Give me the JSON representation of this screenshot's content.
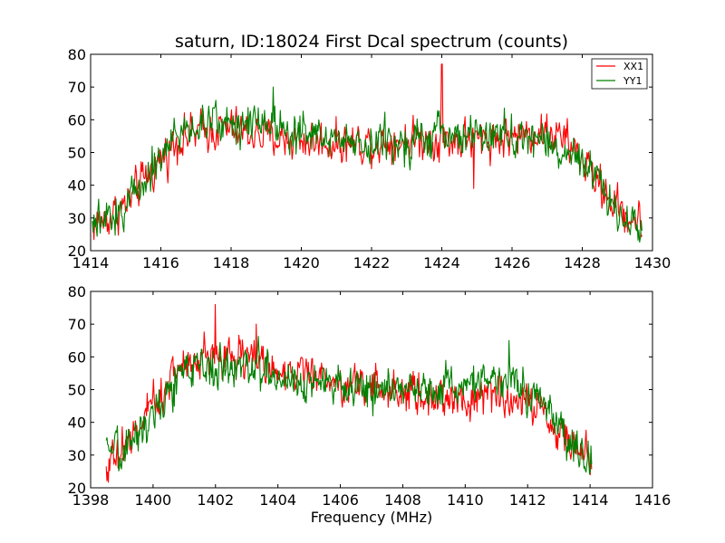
{
  "chart_data": [
    {
      "type": "line",
      "title": "saturn, ID:18024 First Dcal spectrum (counts)",
      "xlabel": "",
      "ylabel": "",
      "xlim": [
        1414,
        1430
      ],
      "ylim": [
        20,
        80
      ],
      "xticks": [
        "1414",
        "1416",
        "1418",
        "1420",
        "1422",
        "1424",
        "1426",
        "1428",
        "1430"
      ],
      "yticks": [
        "20",
        "30",
        "40",
        "50",
        "60",
        "70",
        "80"
      ],
      "legend": {
        "position": "top-right",
        "entries": [
          "XX1",
          "YY1"
        ]
      },
      "series": [
        {
          "name": "XX1",
          "color": "#ff0000",
          "x_range": [
            1414.05,
            1429.7
          ],
          "envelope": [
            [
              1414.05,
              28
            ],
            [
              1414.5,
              30
            ],
            [
              1415.0,
              34
            ],
            [
              1415.5,
              41
            ],
            [
              1416.0,
              48
            ],
            [
              1416.5,
              54
            ],
            [
              1417.0,
              56
            ],
            [
              1417.5,
              57
            ],
            [
              1418.0,
              57
            ],
            [
              1418.5,
              56
            ],
            [
              1419.0,
              55
            ],
            [
              1419.5,
              54
            ],
            [
              1420.0,
              54
            ],
            [
              1421.0,
              53
            ],
            [
              1422.0,
              53
            ],
            [
              1423.0,
              54
            ],
            [
              1424.0,
              54
            ],
            [
              1425.0,
              54
            ],
            [
              1426.0,
              55
            ],
            [
              1426.5,
              56
            ],
            [
              1427.0,
              56
            ],
            [
              1427.5,
              54
            ],
            [
              1428.0,
              48
            ],
            [
              1428.5,
              40
            ],
            [
              1429.0,
              33
            ],
            [
              1429.7,
              28
            ]
          ],
          "spikes": [
            [
              1424.0,
              77
            ],
            [
              1424.9,
              39
            ]
          ],
          "noise": 4.5
        },
        {
          "name": "YY1",
          "color": "#008000",
          "x_range": [
            1414.05,
            1429.7
          ],
          "envelope": [
            [
              1414.05,
              27
            ],
            [
              1414.5,
              29
            ],
            [
              1415.0,
              34
            ],
            [
              1415.5,
              42
            ],
            [
              1416.0,
              49
            ],
            [
              1416.5,
              56
            ],
            [
              1417.0,
              58
            ],
            [
              1417.5,
              59
            ],
            [
              1418.0,
              59
            ],
            [
              1418.5,
              60
            ],
            [
              1419.0,
              60
            ],
            [
              1419.5,
              58
            ],
            [
              1420.0,
              56
            ],
            [
              1421.0,
              54
            ],
            [
              1422.0,
              53
            ],
            [
              1423.0,
              54
            ],
            [
              1424.0,
              55
            ],
            [
              1425.0,
              55
            ],
            [
              1426.0,
              55
            ],
            [
              1426.5,
              55
            ],
            [
              1427.0,
              53
            ],
            [
              1427.5,
              50
            ],
            [
              1428.0,
              46
            ],
            [
              1428.5,
              40
            ],
            [
              1429.0,
              32
            ],
            [
              1429.7,
              27
            ]
          ],
          "spikes": [
            [
              1419.2,
              70
            ]
          ],
          "noise": 4.5
        }
      ]
    },
    {
      "type": "line",
      "title": "",
      "xlabel": "Frequency (MHz)",
      "ylabel": "",
      "xlim": [
        1398,
        1416
      ],
      "ylim": [
        20,
        80
      ],
      "xticks": [
        "1398",
        "1400",
        "1402",
        "1404",
        "1406",
        "1408",
        "1410",
        "1412",
        "1414",
        "1416"
      ],
      "yticks": [
        "20",
        "30",
        "40",
        "50",
        "60",
        "70",
        "80"
      ],
      "series": [
        {
          "color": "#ff0000",
          "x_range": [
            1398.5,
            1414.05
          ],
          "envelope": [
            [
              1398.5,
              28
            ],
            [
              1399.0,
              31
            ],
            [
              1399.5,
              38
            ],
            [
              1400.0,
              45
            ],
            [
              1400.5,
              53
            ],
            [
              1401.0,
              58
            ],
            [
              1401.5,
              60
            ],
            [
              1402.0,
              61
            ],
            [
              1402.5,
              61
            ],
            [
              1403.0,
              60
            ],
            [
              1403.5,
              59
            ],
            [
              1404.0,
              56
            ],
            [
              1405.0,
              54
            ],
            [
              1406.0,
              52
            ],
            [
              1407.0,
              51
            ],
            [
              1408.0,
              49
            ],
            [
              1409.0,
              47
            ],
            [
              1410.0,
              48
            ],
            [
              1411.0,
              48
            ],
            [
              1412.0,
              47
            ],
            [
              1412.5,
              43
            ],
            [
              1413.0,
              38
            ],
            [
              1413.5,
              33
            ],
            [
              1414.05,
              28
            ]
          ],
          "spikes": [
            [
              1402.0,
              76
            ],
            [
              1403.3,
              70
            ]
          ],
          "noise": 4.5
        },
        {
          "color": "#008000",
          "x_range": [
            1398.5,
            1414.05
          ],
          "envelope": [
            [
              1398.5,
              29
            ],
            [
              1399.0,
              31
            ],
            [
              1399.5,
              37
            ],
            [
              1400.0,
              43
            ],
            [
              1400.5,
              50
            ],
            [
              1401.0,
              55
            ],
            [
              1401.5,
              57
            ],
            [
              1402.0,
              57
            ],
            [
              1402.5,
              57
            ],
            [
              1403.0,
              57
            ],
            [
              1403.5,
              56
            ],
            [
              1404.0,
              54
            ],
            [
              1405.0,
              52
            ],
            [
              1406.0,
              51
            ],
            [
              1407.0,
              50
            ],
            [
              1408.0,
              50
            ],
            [
              1409.0,
              51
            ],
            [
              1410.0,
              52
            ],
            [
              1411.0,
              53
            ],
            [
              1411.5,
              53
            ],
            [
              1412.0,
              50
            ],
            [
              1412.5,
              45
            ],
            [
              1413.0,
              39
            ],
            [
              1413.5,
              33
            ],
            [
              1414.05,
              29
            ]
          ],
          "spikes": [
            [
              1411.4,
              65
            ]
          ],
          "noise": 4.5
        }
      ]
    }
  ]
}
